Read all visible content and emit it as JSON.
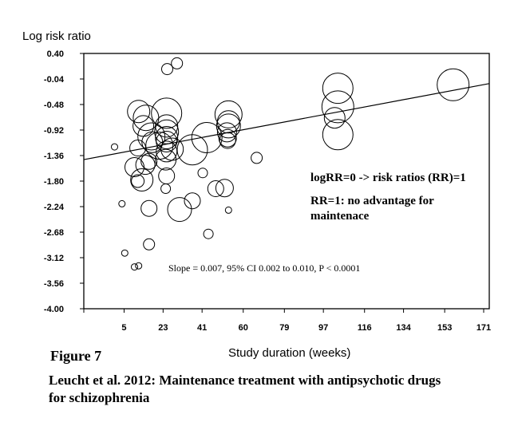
{
  "chart_data": {
    "type": "scatter",
    "subtype": "bubble",
    "ylabel": "Log risk ratio",
    "xlabel": "Study duration (weeks)",
    "ylim": [
      -4.0,
      0.4
    ],
    "xlim": [
      -13.6,
      172
    ],
    "y_ticks": [
      "0.40",
      "-0.04",
      "-0.48",
      "-0.92",
      "-1.36",
      "-1.80",
      "-2.24",
      "-2.68",
      "-3.12",
      "-3.56",
      "-4.00"
    ],
    "y_tick_values": [
      0.4,
      -0.04,
      -0.48,
      -0.92,
      -1.36,
      -1.8,
      -2.24,
      -2.68,
      -3.12,
      -3.56,
      -4.0
    ],
    "x_ticks": [
      "",
      "5",
      "23",
      "41",
      "60",
      "79",
      "97",
      "116",
      "134",
      "153",
      "171"
    ],
    "x_tick_values": [
      -13.6,
      5,
      23,
      41,
      60,
      79,
      97,
      116,
      134,
      153,
      171
    ],
    "grid": false,
    "regression_line": {
      "x": [
        -13.6,
        173.5
      ],
      "y": [
        -1.43,
        -0.12
      ]
    },
    "annotations": [
      "logRR=0 -> risk ratios (RR)=1",
      "RR=1: no advantage for",
      "maintenace",
      "Slope = 0.007, 95% CI 0.002 to 0.010, P < 0.0001"
    ],
    "points": [
      {
        "x": 29.4,
        "y": 0.23,
        "w": 7
      },
      {
        "x": 24.9,
        "y": 0.13,
        "w": 7
      },
      {
        "x": 11.7,
        "y": -0.6,
        "w": 14
      },
      {
        "x": 15.1,
        "y": -0.71,
        "w": 16
      },
      {
        "x": 13.9,
        "y": -0.85,
        "w": 13
      },
      {
        "x": 24.6,
        "y": -0.63,
        "w": 19
      },
      {
        "x": 18.0,
        "y": -1.13,
        "w": 13
      },
      {
        "x": 0.6,
        "y": -1.21,
        "w": 4
      },
      {
        "x": 11.3,
        "y": -1.23,
        "w": 10
      },
      {
        "x": 17.6,
        "y": -1.03,
        "w": 17
      },
      {
        "x": 21.3,
        "y": -1.19,
        "w": 17
      },
      {
        "x": 24.6,
        "y": -0.85,
        "w": 14
      },
      {
        "x": 24.6,
        "y": -0.95,
        "w": 15
      },
      {
        "x": 24.6,
        "y": -1.05,
        "w": 14
      },
      {
        "x": 24.6,
        "y": -1.12,
        "w": 13
      },
      {
        "x": 24.6,
        "y": -1.29,
        "w": 13
      },
      {
        "x": 24.2,
        "y": -1.43,
        "w": 13
      },
      {
        "x": 27.2,
        "y": -1.25,
        "w": 14
      },
      {
        "x": 36.5,
        "y": -1.26,
        "w": 19
      },
      {
        "x": 43.2,
        "y": -1.05,
        "w": 19
      },
      {
        "x": 53.2,
        "y": -0.65,
        "w": 17
      },
      {
        "x": 53.2,
        "y": -0.78,
        "w": 14
      },
      {
        "x": 53.2,
        "y": -0.85,
        "w": 15
      },
      {
        "x": 52.5,
        "y": -0.96,
        "w": 12
      },
      {
        "x": 52.8,
        "y": -1.06,
        "w": 11
      },
      {
        "x": 66.2,
        "y": -1.4,
        "w": 7
      },
      {
        "x": 52.8,
        "y": -1.1,
        "w": 10
      },
      {
        "x": 9.8,
        "y": -1.56,
        "w": 12
      },
      {
        "x": 14.8,
        "y": -1.52,
        "w": 12
      },
      {
        "x": 11.3,
        "y": -1.8,
        "w": 8
      },
      {
        "x": 13.2,
        "y": -1.78,
        "w": 14
      },
      {
        "x": 16.5,
        "y": -1.46,
        "w": 10
      },
      {
        "x": 24.6,
        "y": -1.71,
        "w": 10
      },
      {
        "x": 24.2,
        "y": -1.93,
        "w": 6
      },
      {
        "x": 41.3,
        "y": -1.66,
        "w": 6
      },
      {
        "x": 47.3,
        "y": -1.93,
        "w": 10
      },
      {
        "x": 51.4,
        "y": -1.92,
        "w": 11
      },
      {
        "x": 4.0,
        "y": -2.19,
        "w": 4
      },
      {
        "x": 16.5,
        "y": -2.27,
        "w": 10
      },
      {
        "x": 30.6,
        "y": -2.29,
        "w": 15
      },
      {
        "x": 36.5,
        "y": -2.14,
        "w": 10
      },
      {
        "x": 53.2,
        "y": -2.3,
        "w": 4
      },
      {
        "x": 43.9,
        "y": -2.71,
        "w": 6
      },
      {
        "x": 16.5,
        "y": -2.89,
        "w": 7
      },
      {
        "x": 5.3,
        "y": -3.04,
        "w": 4
      },
      {
        "x": 9.8,
        "y": -3.28,
        "w": 4
      },
      {
        "x": 11.7,
        "y": -3.26,
        "w": 4
      },
      {
        "x": 103.7,
        "y": -0.2,
        "w": 19
      },
      {
        "x": 103.7,
        "y": -0.52,
        "w": 20
      },
      {
        "x": 102.2,
        "y": -0.71,
        "w": 13
      },
      {
        "x": 103.7,
        "y": -1.0,
        "w": 19
      },
      {
        "x": 156.9,
        "y": -0.14,
        "w": 20
      }
    ]
  },
  "figure": {
    "label": "Figure 7",
    "caption_line1": "Leucht et al. 2012: Maintenance treatment with antipsychotic drugs",
    "caption_line2": "for schizophrenia"
  }
}
